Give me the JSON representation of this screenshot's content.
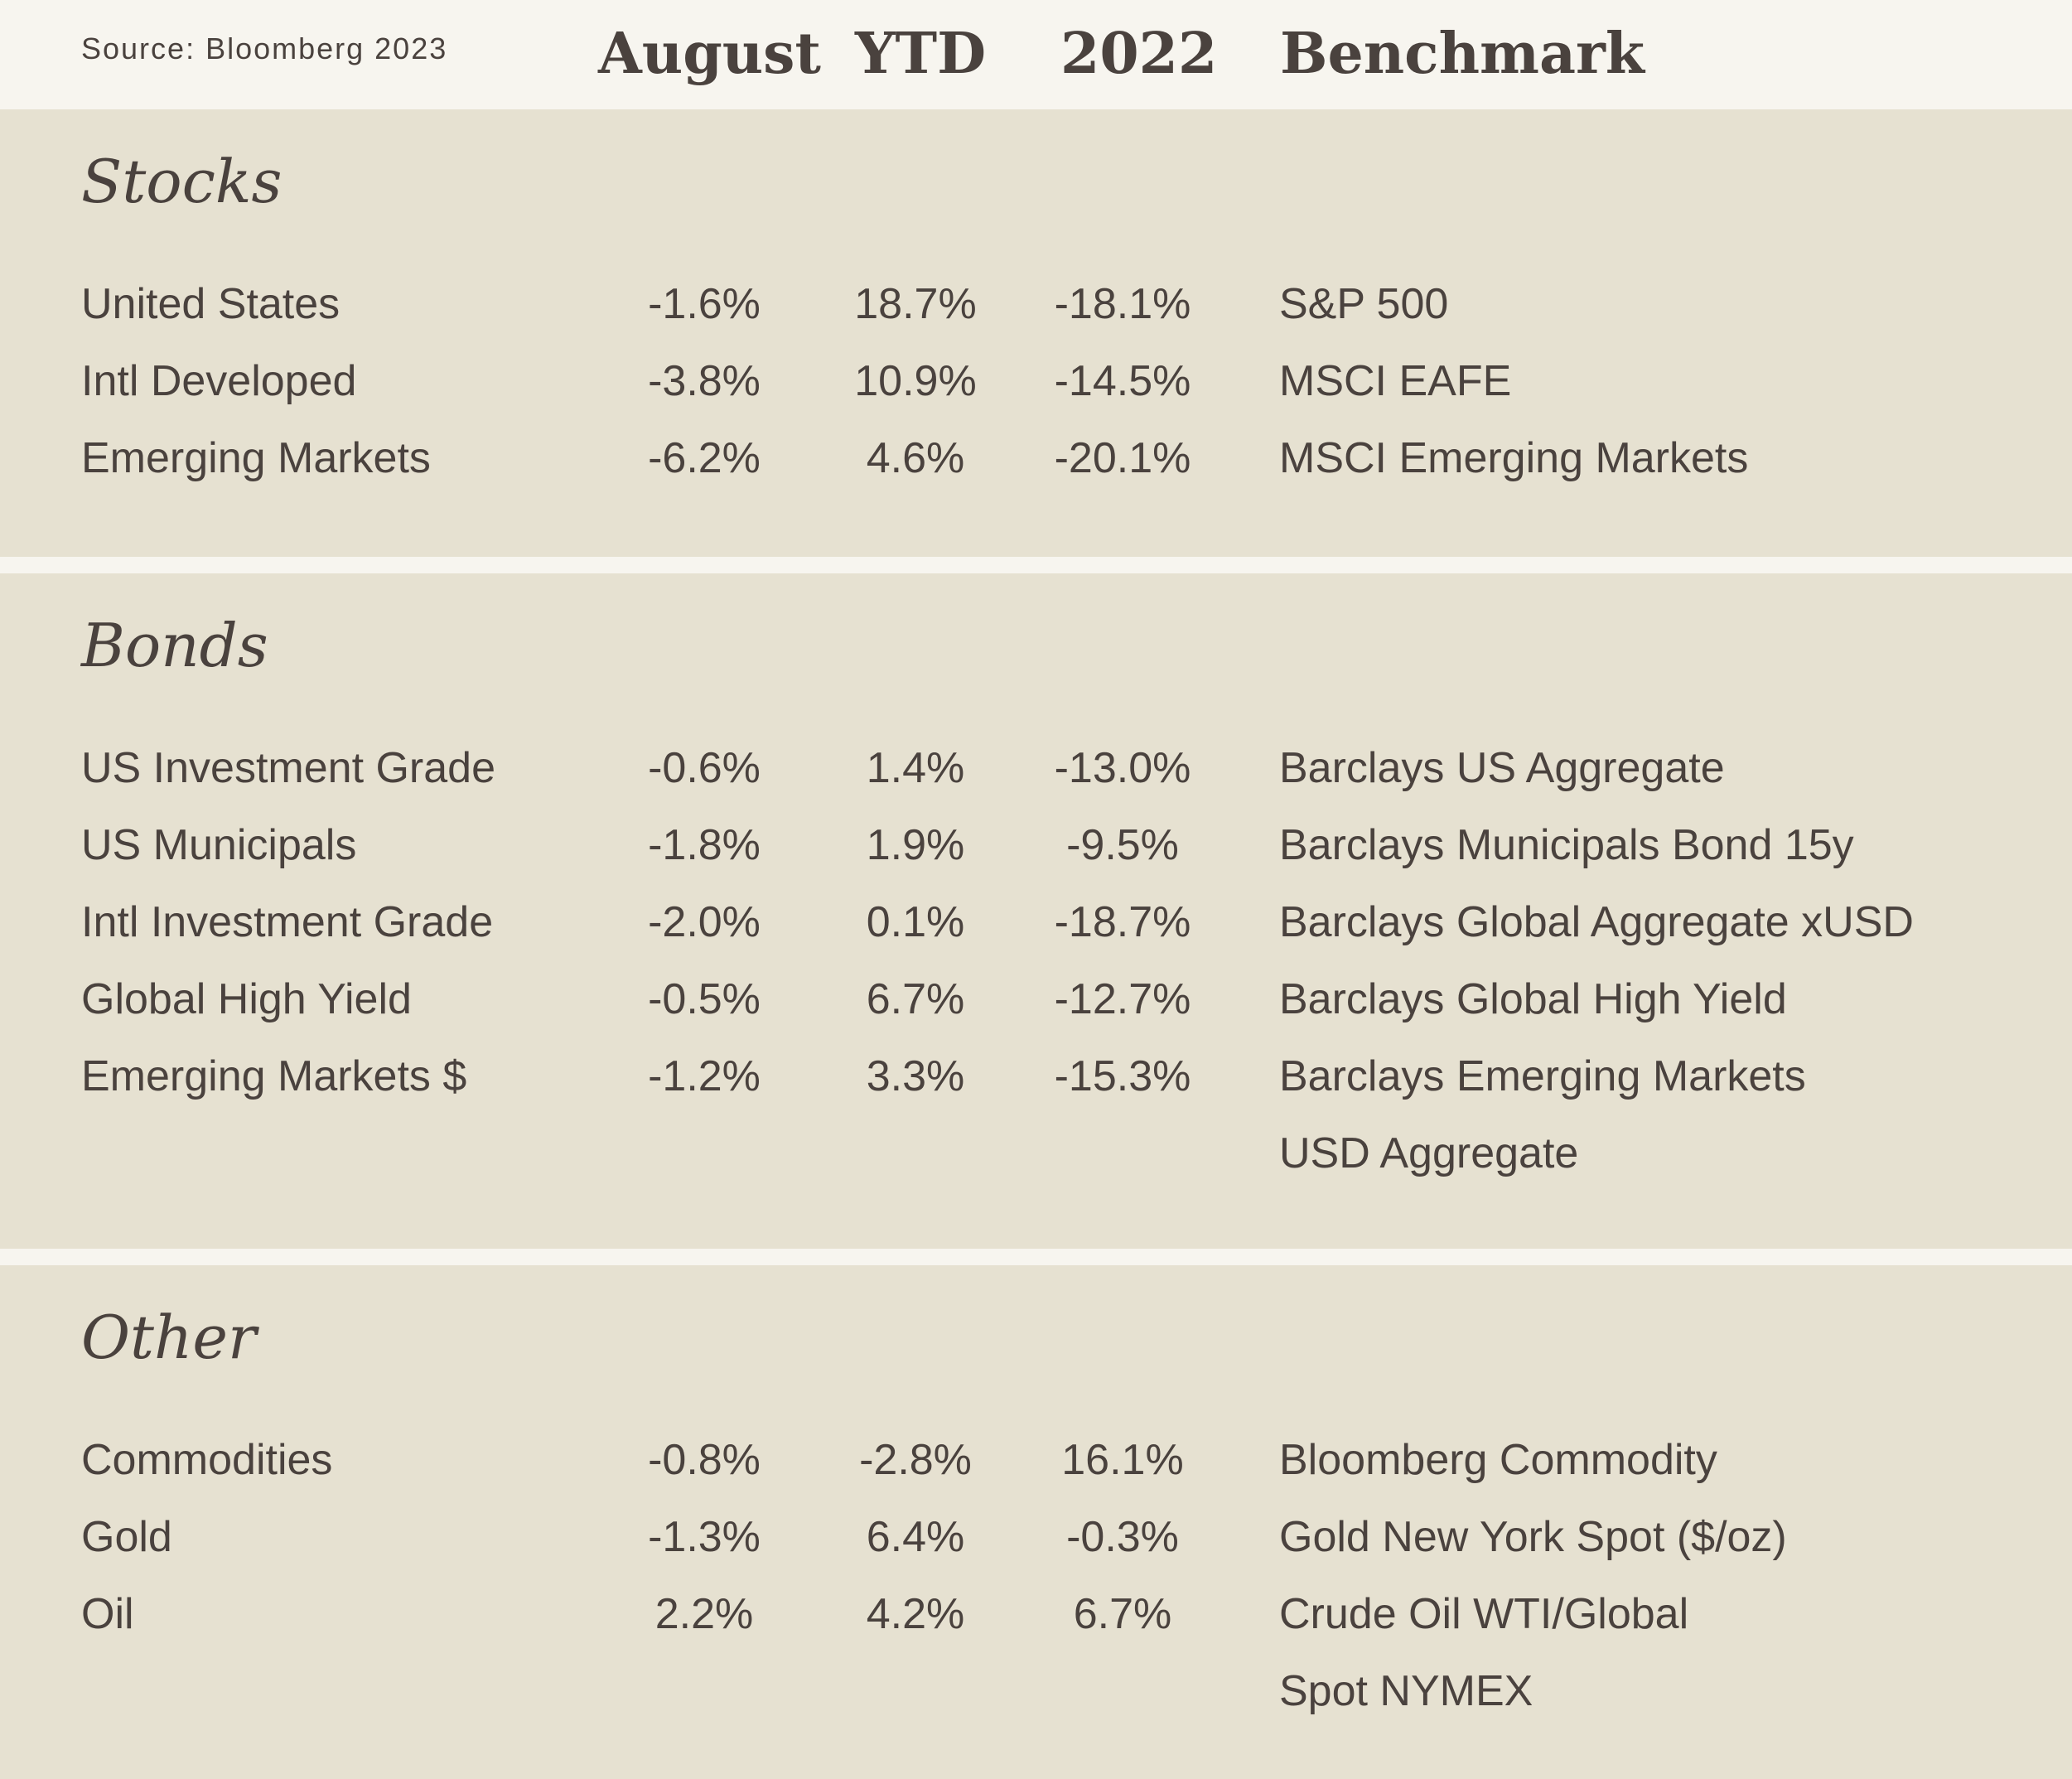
{
  "source": "Source:  Bloomberg 2023",
  "columns": {
    "august": "August",
    "ytd": "YTD",
    "y2022": "2022",
    "benchmark": "Benchmark"
  },
  "sections": [
    {
      "title": "Stocks",
      "rows": [
        {
          "label": "United States",
          "august": "-1.6%",
          "ytd": "18.7%",
          "y2022": "-18.1%",
          "benchmark": "S&P 500",
          "benchmark2": ""
        },
        {
          "label": "Intl Developed",
          "august": "-3.8%",
          "ytd": "10.9%",
          "y2022": "-14.5%",
          "benchmark": "MSCI EAFE",
          "benchmark2": ""
        },
        {
          "label": "Emerging Markets",
          "august": "-6.2%",
          "ytd": "4.6%",
          "y2022": "-20.1%",
          "benchmark": "MSCI Emerging Markets",
          "benchmark2": ""
        }
      ]
    },
    {
      "title": "Bonds",
      "rows": [
        {
          "label": "US Investment Grade",
          "august": "-0.6%",
          "ytd": "1.4%",
          "y2022": "-13.0%",
          "benchmark": "Barclays US Aggregate",
          "benchmark2": ""
        },
        {
          "label": "US Municipals",
          "august": "-1.8%",
          "ytd": "1.9%",
          "y2022": "-9.5%",
          "benchmark": "Barclays Municipals Bond 15y",
          "benchmark2": ""
        },
        {
          "label": "Intl Investment Grade",
          "august": "-2.0%",
          "ytd": "0.1%",
          "y2022": "-18.7%",
          "benchmark": "Barclays Global Aggregate xUSD",
          "benchmark2": ""
        },
        {
          "label": "Global High Yield",
          "august": "-0.5%",
          "ytd": "6.7%",
          "y2022": "-12.7%",
          "benchmark": "Barclays Global High Yield",
          "benchmark2": ""
        },
        {
          "label": "Emerging Markets $",
          "august": "-1.2%",
          "ytd": "3.3%",
          "y2022": "-15.3%",
          "benchmark": "Barclays Emerging Markets",
          "benchmark2": "USD Aggregate"
        }
      ]
    },
    {
      "title": "Other",
      "rows": [
        {
          "label": "Commodities",
          "august": "-0.8%",
          "ytd": "-2.8%",
          "y2022": "16.1%",
          "benchmark": "Bloomberg Commodity",
          "benchmark2": ""
        },
        {
          "label": "Gold",
          "august": "-1.3%",
          "ytd": "6.4%",
          "y2022": "-0.3%",
          "benchmark": "Gold New York Spot ($/oz)",
          "benchmark2": ""
        },
        {
          "label": "Oil",
          "august": "2.2%",
          "ytd": "4.2%",
          "y2022": "6.7%",
          "benchmark": "Crude Oil WTI/Global",
          "benchmark2": "Spot NYMEX"
        }
      ]
    }
  ]
}
